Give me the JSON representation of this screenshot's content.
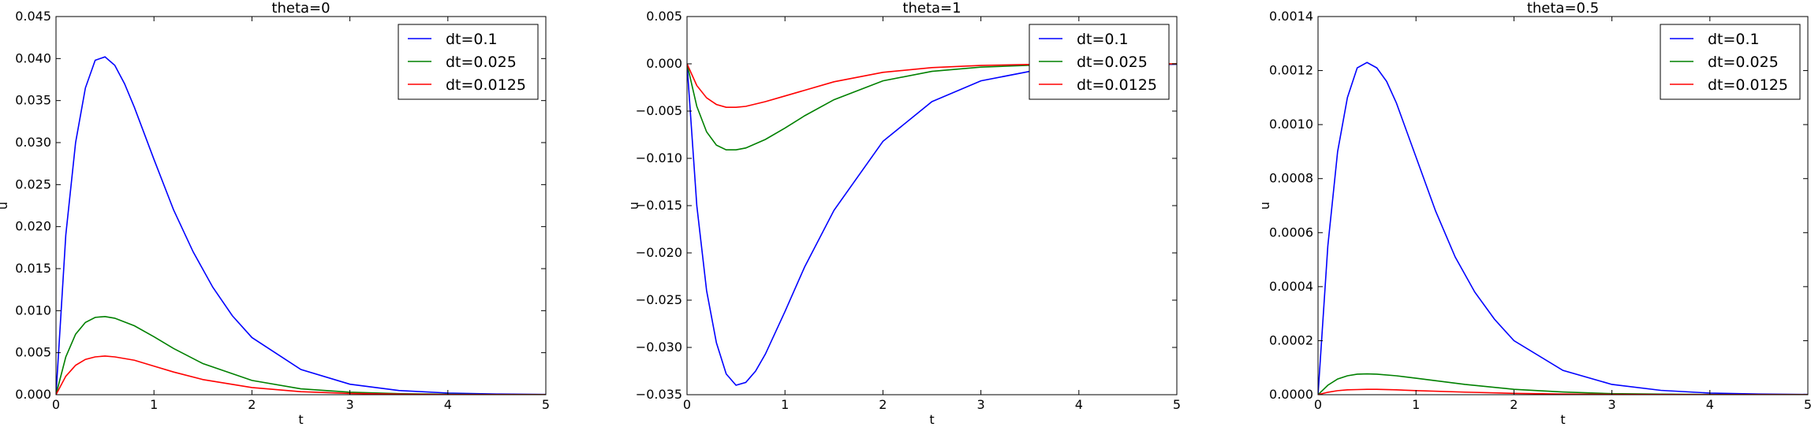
{
  "chart_data": [
    {
      "type": "line",
      "title": "theta=0",
      "xlabel": "t",
      "ylabel": "u",
      "xlim": [
        0,
        5
      ],
      "ylim": [
        0,
        0.045
      ],
      "xticks": [
        "0",
        "1",
        "2",
        "3",
        "4",
        "5"
      ],
      "yticks": [
        "0.000",
        "0.005",
        "0.010",
        "0.015",
        "0.020",
        "0.025",
        "0.030",
        "0.035",
        "0.040",
        "0.045"
      ],
      "legend_position": "top-right",
      "series": [
        {
          "name": "dt=0.1",
          "color": "#0000ff",
          "x": [
            0,
            0.1,
            0.2,
            0.3,
            0.4,
            0.5,
            0.6,
            0.7,
            0.8,
            1.0,
            1.2,
            1.4,
            1.6,
            1.8,
            2.0,
            2.5,
            3.0,
            3.5,
            4.0,
            4.5,
            5.0
          ],
          "y": [
            0,
            0.019,
            0.03,
            0.0365,
            0.0398,
            0.0402,
            0.0392,
            0.037,
            0.0342,
            0.028,
            0.022,
            0.017,
            0.0128,
            0.0094,
            0.0068,
            0.003,
            0.00125,
            0.0005,
            0.0002,
            8e-05,
            3e-05
          ]
        },
        {
          "name": "dt=0.025",
          "color": "#008000",
          "x": [
            0,
            0.1,
            0.2,
            0.3,
            0.4,
            0.5,
            0.6,
            0.8,
            1.0,
            1.2,
            1.5,
            2.0,
            2.5,
            3.0,
            3.5,
            4.0,
            4.5,
            5.0
          ],
          "y": [
            0,
            0.0045,
            0.0072,
            0.0086,
            0.0092,
            0.0093,
            0.0091,
            0.0082,
            0.0069,
            0.0055,
            0.0037,
            0.0017,
            0.0007,
            0.0003,
            0.00012,
            5e-05,
            2e-05,
            1e-05
          ]
        },
        {
          "name": "dt=0.0125",
          "color": "#ff0000",
          "x": [
            0,
            0.1,
            0.2,
            0.3,
            0.4,
            0.5,
            0.6,
            0.8,
            1.0,
            1.2,
            1.5,
            2.0,
            2.5,
            3.0,
            3.5,
            4.0,
            4.5,
            5.0
          ],
          "y": [
            0,
            0.0022,
            0.0035,
            0.0042,
            0.0045,
            0.0046,
            0.0045,
            0.0041,
            0.0034,
            0.0027,
            0.0018,
            0.00085,
            0.00036,
            0.00015,
            6e-05,
            2e-05,
            1e-05,
            0.0
          ]
        }
      ]
    },
    {
      "type": "line",
      "title": "theta=1",
      "xlabel": "t",
      "ylabel": "u",
      "xlim": [
        0,
        5
      ],
      "ylim": [
        -0.035,
        0.005
      ],
      "xticks": [
        "0",
        "1",
        "2",
        "3",
        "4",
        "5"
      ],
      "yticks": [
        "−0.035",
        "−0.030",
        "−0.025",
        "−0.020",
        "−0.015",
        "−0.010",
        "−0.005",
        "0.000",
        "0.005"
      ],
      "legend_position": "top-right",
      "series": [
        {
          "name": "dt=0.1",
          "color": "#0000ff",
          "x": [
            0,
            0.1,
            0.2,
            0.3,
            0.4,
            0.5,
            0.6,
            0.7,
            0.8,
            1.0,
            1.2,
            1.5,
            2.0,
            2.5,
            3.0,
            3.5,
            4.0,
            4.5,
            5.0
          ],
          "y": [
            0,
            -0.015,
            -0.024,
            -0.0295,
            -0.0328,
            -0.034,
            -0.0337,
            -0.0325,
            -0.0307,
            -0.0262,
            -0.0215,
            -0.0155,
            -0.0082,
            -0.004,
            -0.0018,
            -0.0008,
            -0.0003,
            -0.00012,
            -5e-05
          ]
        },
        {
          "name": "dt=0.025",
          "color": "#008000",
          "x": [
            0,
            0.1,
            0.2,
            0.3,
            0.4,
            0.5,
            0.6,
            0.8,
            1.0,
            1.2,
            1.5,
            2.0,
            2.5,
            3.0,
            3.5,
            4.0,
            4.5,
            5.0
          ],
          "y": [
            0,
            -0.0045,
            -0.0072,
            -0.0086,
            -0.0091,
            -0.0091,
            -0.0089,
            -0.008,
            -0.0068,
            -0.0055,
            -0.0038,
            -0.0018,
            -0.0008,
            -0.00035,
            -0.00015,
            -6e-05,
            -2e-05,
            -1e-05
          ]
        },
        {
          "name": "dt=0.0125",
          "color": "#ff0000",
          "x": [
            0,
            0.1,
            0.2,
            0.3,
            0.4,
            0.5,
            0.6,
            0.8,
            1.0,
            1.2,
            1.5,
            2.0,
            2.5,
            3.0,
            3.5,
            4.0,
            4.5,
            5.0
          ],
          "y": [
            0,
            -0.0023,
            -0.0036,
            -0.0043,
            -0.0046,
            -0.0046,
            -0.0045,
            -0.004,
            -0.0034,
            -0.0028,
            -0.0019,
            -0.0009,
            -0.0004,
            -0.00017,
            -7e-05,
            -3e-05,
            -1e-05,
            0.0
          ]
        }
      ]
    },
    {
      "type": "line",
      "title": "theta=0.5",
      "xlabel": "t",
      "ylabel": "u",
      "xlim": [
        0,
        5
      ],
      "ylim": [
        0,
        0.0014
      ],
      "xticks": [
        "0",
        "1",
        "2",
        "3",
        "4",
        "5"
      ],
      "yticks": [
        "0.0000",
        "0.0002",
        "0.0004",
        "0.0006",
        "0.0008",
        "0.0010",
        "0.0012",
        "0.0014"
      ],
      "legend_position": "top-right",
      "series": [
        {
          "name": "dt=0.1",
          "color": "#0000ff",
          "x": [
            0,
            0.1,
            0.2,
            0.3,
            0.4,
            0.5,
            0.6,
            0.7,
            0.8,
            1.0,
            1.2,
            1.4,
            1.6,
            1.8,
            2.0,
            2.5,
            3.0,
            3.5,
            4.0,
            4.5,
            5.0
          ],
          "y": [
            0,
            0.00055,
            0.0009,
            0.0011,
            0.00121,
            0.00123,
            0.00121,
            0.00116,
            0.00108,
            0.00088,
            0.00068,
            0.00051,
            0.00038,
            0.00028,
            0.0002,
            9e-05,
            3.8e-05,
            1.6e-05,
            6e-06,
            2.5e-06,
            1e-06
          ]
        },
        {
          "name": "dt=0.025",
          "color": "#008000",
          "x": [
            0,
            0.1,
            0.2,
            0.3,
            0.4,
            0.5,
            0.6,
            0.8,
            1.0,
            1.5,
            2.0,
            2.5,
            3.0,
            3.5,
            4.0,
            4.5,
            5.0
          ],
          "y": [
            0,
            3.5e-05,
            5.8e-05,
            7e-05,
            7.6e-05,
            7.7e-05,
            7.6e-05,
            7e-05,
            6.1e-05,
            3.8e-05,
            2e-05,
            1e-05,
            4e-06,
            2e-06,
            8e-07,
            3e-07,
            1e-07
          ]
        },
        {
          "name": "dt=0.0125",
          "color": "#ff0000",
          "x": [
            0,
            0.1,
            0.2,
            0.3,
            0.4,
            0.5,
            0.6,
            0.8,
            1.0,
            1.5,
            2.0,
            2.5,
            3.0,
            3.5,
            4.0,
            4.5,
            5.0
          ],
          "y": [
            0,
            9e-06,
            1.5e-05,
            1.8e-05,
            1.9e-05,
            2e-05,
            2e-05,
            1.8e-05,
            1.5e-05,
            9.5e-06,
            5e-06,
            2.5e-06,
            1e-06,
            5e-07,
            2e-07,
            1e-07,
            0.0
          ]
        }
      ]
    }
  ]
}
